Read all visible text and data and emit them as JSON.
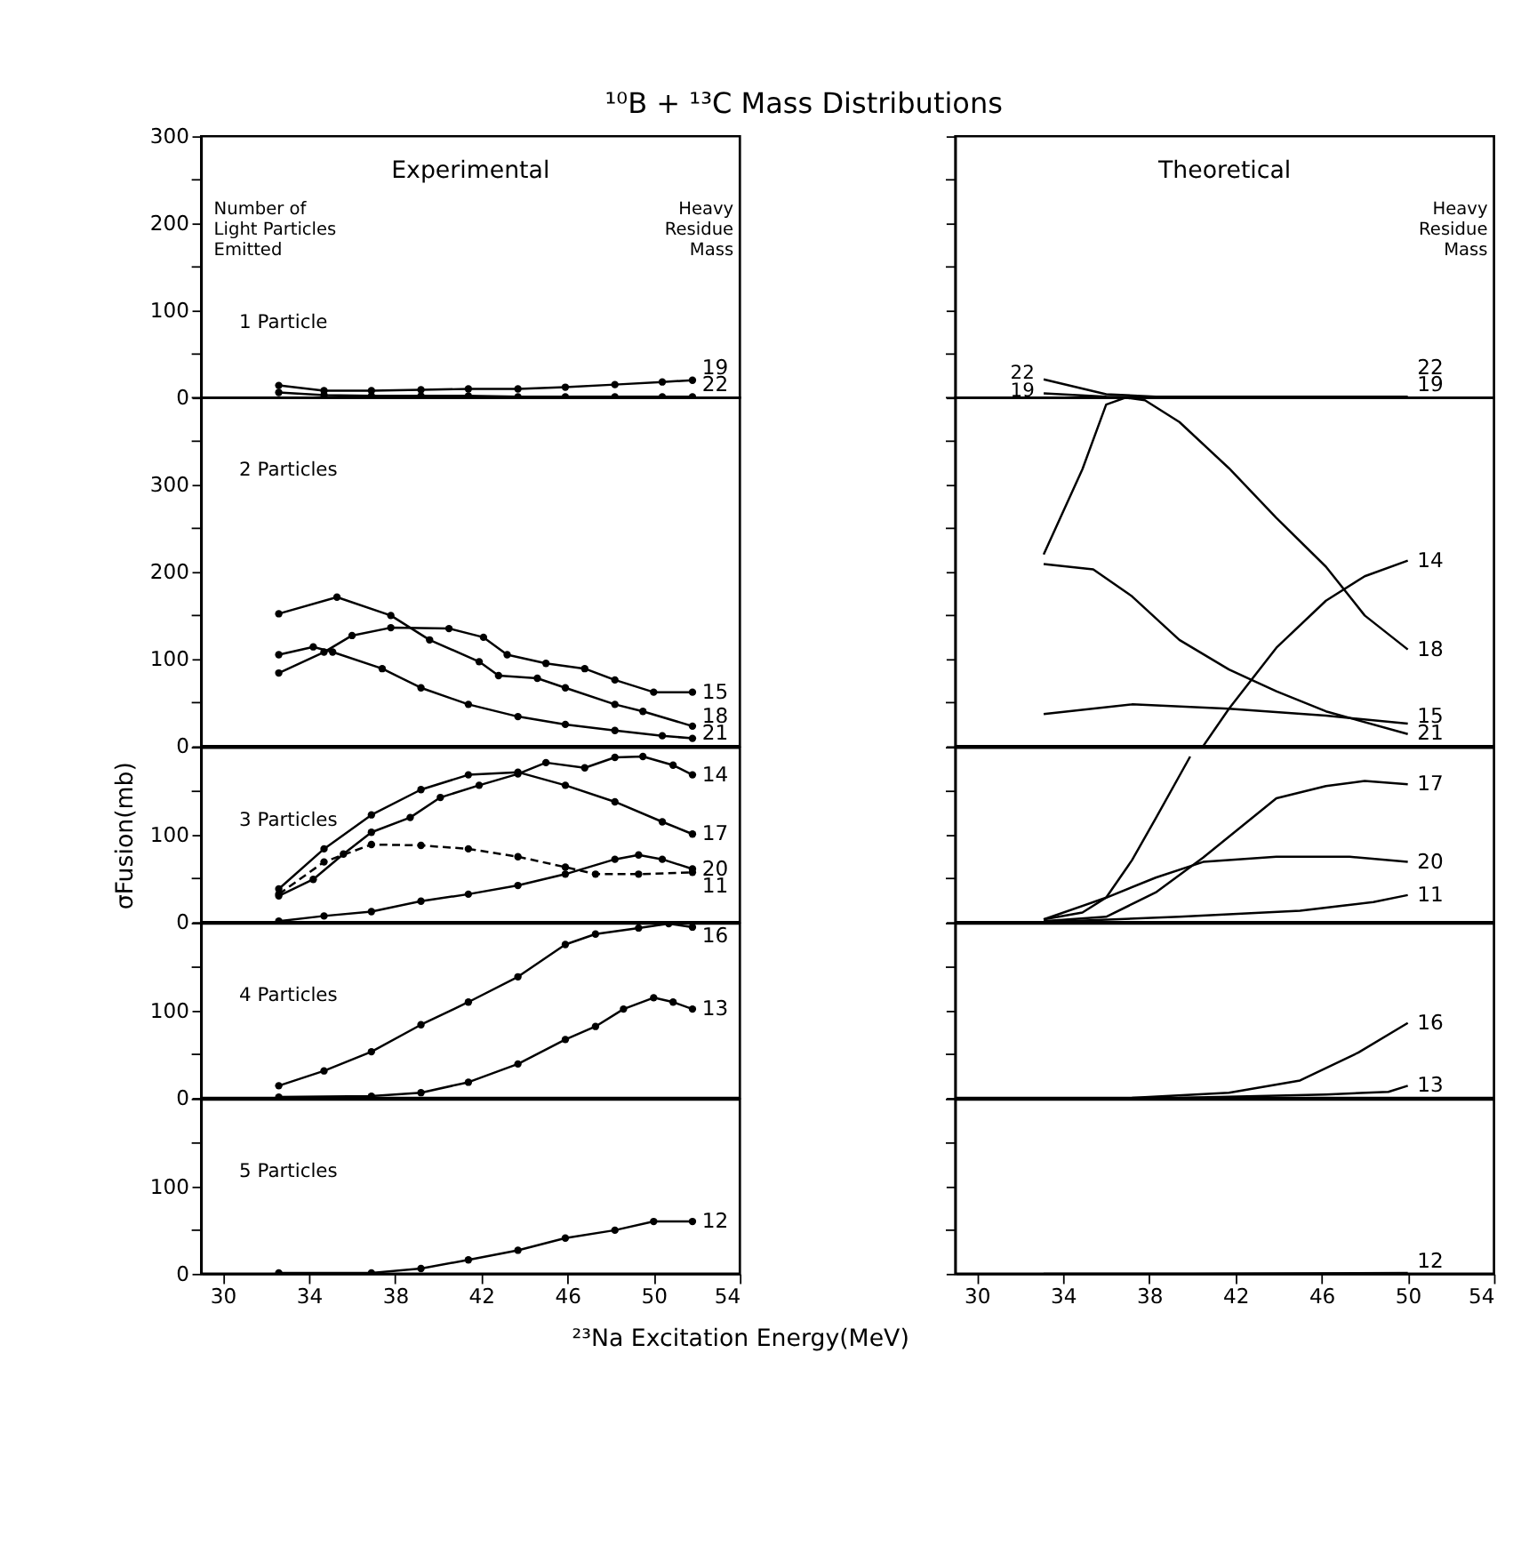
{
  "chart_data": [
    {
      "type": "line",
      "title": "¹⁰B + ¹³C  Mass Distributions",
      "annotations": [
        "Experimental",
        "Number of\nLight Particles\nEmitted",
        "Heavy\nResidue\nMass",
        "1 Particle"
      ],
      "xlim": [
        29,
        54
      ],
      "ylim": [
        0,
        300
      ],
      "yticks": [
        0,
        {
          "value": 50,
          "label": null
        },
        100,
        {
          "value": 150,
          "label": null
        },
        200,
        {
          "value": 250,
          "label": null
        },
        300
      ],
      "tick_labels": "y",
      "marker": "circle",
      "series": [
        {
          "name": "19",
          "color": "#000000",
          "x": [
            32.6,
            34.7,
            36.9,
            39.2,
            41.4,
            43.7,
            45.9,
            48.2,
            50.4,
            51.8
          ],
          "values": [
            14,
            8,
            8,
            9,
            10,
            10,
            12,
            15,
            18,
            20
          ]
        },
        {
          "name": "22",
          "color": "#000000",
          "x": [
            32.6,
            34.7,
            36.9,
            39.2,
            41.4,
            43.7,
            45.9,
            48.2,
            50.4,
            51.8
          ],
          "values": [
            6,
            3,
            2,
            2,
            2,
            1,
            1,
            1,
            1,
            1
          ]
        }
      ]
    },
    {
      "type": "line",
      "annotations": [
        "Theoretical",
        "Heavy\nResidue\nMass",
        "22",
        "19"
      ],
      "xlim": [
        29,
        54
      ],
      "ylim": [
        0,
        300
      ],
      "yticks": [
        0,
        {
          "value": 50,
          "label": null
        },
        100,
        {
          "value": 150,
          "label": null
        },
        200,
        {
          "value": 250,
          "label": null
        },
        300
      ],
      "tick_labels": false,
      "series": [
        {
          "name": "22",
          "color": "#000000",
          "x": [
            33.1,
            36.0,
            38.3,
            50.0
          ],
          "values": [
            21,
            4,
            1,
            1
          ]
        },
        {
          "name": "19",
          "color": "#000000",
          "x": [
            33.1,
            36.0,
            38.3,
            50.0
          ],
          "values": [
            5,
            1,
            0,
            0
          ]
        }
      ]
    },
    {
      "type": "line",
      "annotations": [
        "2 Particles"
      ],
      "xlim": [
        29,
        54
      ],
      "ylim": [
        0,
        400
      ],
      "yticks": [
        0,
        {
          "value": 50,
          "label": null
        },
        100,
        {
          "value": 150,
          "label": null
        },
        200,
        {
          "value": 250,
          "label": null
        },
        300,
        {
          "value": 350,
          "label": null
        },
        {
          "value": 400,
          "label": null
        }
      ],
      "tick_labels": "y",
      "marker": "circle",
      "series": [
        {
          "name": "15",
          "color": "#000000",
          "x": [
            32.6,
            34.7,
            36.0,
            37.8,
            40.5,
            42.1,
            43.2,
            45.0,
            46.8,
            48.2,
            50.0,
            51.8
          ],
          "values": [
            84,
            108,
            127,
            136,
            135,
            125,
            105,
            95,
            89,
            76,
            62,
            62
          ]
        },
        {
          "name": "18",
          "color": "#000000",
          "x": [
            32.6,
            35.3,
            37.8,
            39.6,
            41.9,
            42.8,
            44.6,
            45.9,
            48.2,
            49.5,
            51.8
          ],
          "values": [
            152,
            171,
            150,
            122,
            97,
            81,
            78,
            67,
            48,
            40,
            23
          ]
        },
        {
          "name": "21",
          "color": "#000000",
          "x": [
            32.6,
            34.2,
            35.1,
            37.4,
            39.2,
            41.4,
            43.7,
            45.9,
            48.2,
            50.4,
            51.8
          ],
          "values": [
            105,
            114,
            108,
            89,
            67,
            48,
            34,
            25,
            18,
            12,
            9
          ]
        }
      ]
    },
    {
      "type": "line",
      "xlim": [
        29,
        54
      ],
      "ylim": [
        0,
        400
      ],
      "yticks": [
        0,
        {
          "value": 50,
          "label": null
        },
        100,
        {
          "value": 150,
          "label": null
        },
        200,
        {
          "value": 250,
          "label": null
        },
        300,
        {
          "value": 350,
          "label": null
        },
        {
          "value": 400,
          "label": null
        }
      ],
      "tick_labels": false,
      "series": [
        {
          "name": "14",
          "color": "#000000",
          "x": [
            40.5,
            41.7,
            43.9,
            46.2,
            48.0,
            50.0
          ],
          "values": [
            0,
            43,
            113,
            167,
            195,
            213
          ]
        },
        {
          "name": "18",
          "color": "#000000",
          "x": [
            33.1,
            34.9,
            36.0,
            36.9,
            37.8,
            39.4,
            41.7,
            43.9,
            46.2,
            48.0,
            50.0
          ],
          "values": [
            220,
            318,
            392,
            400,
            397,
            372,
            319,
            262,
            206,
            150,
            111
          ]
        },
        {
          "name": "15",
          "color": "#000000",
          "x": [
            33.1,
            37.2,
            41.7,
            46.2,
            50.0
          ],
          "values": [
            37,
            48,
            43,
            35,
            26
          ]
        },
        {
          "name": "21",
          "color": "#000000",
          "x": [
            33.1,
            35.4,
            37.2,
            39.4,
            41.7,
            43.9,
            46.2,
            50.0
          ],
          "values": [
            209,
            203,
            172,
            122,
            88,
            63,
            40,
            14
          ]
        }
      ]
    },
    {
      "type": "line",
      "ylabel": "σFusion(mb)",
      "annotations": [
        "3 Particles"
      ],
      "xlim": [
        29,
        54
      ],
      "ylim": [
        0,
        200
      ],
      "yticks": [
        0,
        {
          "value": 50,
          "label": null
        },
        100,
        {
          "value": 150,
          "label": null
        },
        {
          "value": 200,
          "label": null
        }
      ],
      "tick_labels": "y",
      "marker": "circle",
      "series": [
        {
          "name": "14",
          "color": "#000000",
          "x": [
            32.6,
            34.2,
            35.6,
            36.9,
            38.7,
            40.1,
            41.9,
            43.7,
            45.0,
            46.8,
            48.2,
            49.5,
            50.9,
            51.8
          ],
          "values": [
            30,
            49,
            78,
            103,
            120,
            143,
            157,
            170,
            183,
            177,
            189,
            190,
            180,
            169
          ]
        },
        {
          "name": "17",
          "color": "#000000",
          "x": [
            32.6,
            34.7,
            36.9,
            39.2,
            41.4,
            43.7,
            45.9,
            48.2,
            50.4,
            51.8
          ],
          "values": [
            38,
            84,
            123,
            152,
            169,
            172,
            157,
            138,
            115,
            101
          ]
        },
        {
          "name": "11",
          "color": "#000000",
          "line_style": "dashed",
          "x": [
            32.6,
            34.7,
            36.9,
            39.2,
            41.4,
            43.7,
            45.9,
            47.3,
            49.3,
            51.8
          ],
          "values": [
            32,
            69,
            89,
            88,
            84,
            75,
            63,
            55,
            55,
            57
          ]
        },
        {
          "name": "20",
          "color": "#000000",
          "x": [
            32.6,
            34.7,
            36.9,
            39.2,
            41.4,
            43.7,
            45.9,
            48.2,
            49.3,
            50.4,
            51.8
          ],
          "values": [
            1,
            7,
            12,
            24,
            32,
            42,
            55,
            72,
            77,
            72,
            61
          ]
        }
      ]
    },
    {
      "type": "line",
      "xlim": [
        29,
        54
      ],
      "ylim": [
        0,
        200
      ],
      "yticks": [
        0,
        {
          "value": 50,
          "label": null
        },
        100,
        {
          "value": 150,
          "label": null
        },
        {
          "value": 200,
          "label": null
        }
      ],
      "tick_labels": false,
      "series": [
        {
          "color": "#000000",
          "x": [
            33.1,
            34.9,
            36.0,
            37.2,
            38.3,
            39.9
          ],
          "values": [
            3,
            11,
            28,
            71,
            119,
            190
          ]
        },
        {
          "name": "17",
          "color": "#000000",
          "x": [
            33.1,
            36.0,
            38.3,
            40.5,
            43.9,
            46.2,
            48.0,
            50.0
          ],
          "values": [
            1,
            6,
            34,
            74,
            142,
            156,
            162,
            158
          ]
        },
        {
          "name": "20",
          "color": "#000000",
          "x": [
            33.1,
            36.0,
            38.3,
            40.5,
            43.9,
            47.3,
            50.0
          ],
          "values": [
            3,
            28,
            51,
            69,
            75,
            75,
            69
          ]
        },
        {
          "name": "11",
          "color": "#000000",
          "x": [
            33.1,
            39.4,
            45.0,
            48.4,
            50.0
          ],
          "values": [
            0,
            6,
            13,
            23,
            31
          ]
        }
      ]
    },
    {
      "type": "line",
      "annotations": [
        "4 Particles"
      ],
      "xlim": [
        29,
        54
      ],
      "ylim": [
        0,
        200
      ],
      "yticks": [
        0,
        {
          "value": 50,
          "label": null
        },
        100,
        {
          "value": 150,
          "label": null
        },
        {
          "value": 200,
          "label": null
        }
      ],
      "tick_labels": "y",
      "marker": "circle",
      "series": [
        {
          "name": "16",
          "color": "#000000",
          "x": [
            32.6,
            34.7,
            36.9,
            39.2,
            41.4,
            43.7,
            45.9,
            47.3,
            49.3,
            50.7,
            51.8
          ],
          "values": [
            14,
            31,
            53,
            84,
            110,
            139,
            176,
            188,
            195,
            200,
            196
          ]
        },
        {
          "name": "13",
          "color": "#000000",
          "x": [
            32.6,
            36.9,
            39.2,
            41.4,
            43.7,
            45.9,
            47.3,
            48.6,
            50.0,
            50.9,
            51.8
          ],
          "values": [
            1,
            2,
            6,
            18,
            39,
            67,
            82,
            102,
            115,
            110,
            102
          ]
        }
      ]
    },
    {
      "type": "line",
      "xlim": [
        29,
        54
      ],
      "ylim": [
        0,
        200
      ],
      "yticks": [
        0,
        {
          "value": 50,
          "label": null
        },
        100,
        {
          "value": 150,
          "label": null
        },
        {
          "value": 200,
          "label": null
        }
      ],
      "tick_labels": false,
      "series": [
        {
          "name": "16",
          "color": "#000000",
          "x": [
            37.2,
            41.7,
            45.0,
            47.7,
            50.0
          ],
          "values": [
            0,
            6,
            20,
            52,
            86
          ]
        },
        {
          "name": "13",
          "color": "#000000",
          "x": [
            39.4,
            46.2,
            49.1,
            50.0
          ],
          "values": [
            0,
            4,
            7,
            14
          ]
        }
      ]
    },
    {
      "type": "line",
      "xlabel": "²³Na  Excitation  Energy(MeV)",
      "annotations": [
        "5 Particles"
      ],
      "xlim": [
        29,
        54
      ],
      "xticks": [
        30,
        34,
        38,
        42,
        46,
        50,
        54
      ],
      "ylim": [
        0,
        200
      ],
      "yticks": [
        0,
        {
          "value": 50,
          "label": null
        },
        100,
        {
          "value": 150,
          "label": null
        },
        {
          "value": 200,
          "label": null
        }
      ],
      "marker": "circle",
      "series": [
        {
          "name": "12",
          "color": "#000000",
          "x": [
            32.6,
            36.9,
            39.2,
            41.4,
            43.7,
            45.9,
            48.2,
            50.0,
            51.8
          ],
          "values": [
            1,
            1,
            6,
            16,
            27,
            41,
            50,
            60,
            60
          ]
        }
      ]
    },
    {
      "type": "line",
      "xlim": [
        29,
        54
      ],
      "xticks": [
        30,
        34,
        38,
        42,
        46,
        50,
        54
      ],
      "ylim": [
        0,
        200
      ],
      "yticks": [
        0,
        {
          "value": 50,
          "label": null
        },
        100,
        {
          "value": 150,
          "label": null
        },
        {
          "value": 200,
          "label": null
        }
      ],
      "tick_labels": "x",
      "series": [
        {
          "name": "12",
          "color": "#000000",
          "x": [
            33.1,
            40.0,
            50.0
          ],
          "values": [
            0,
            0,
            1
          ]
        }
      ]
    }
  ]
}
